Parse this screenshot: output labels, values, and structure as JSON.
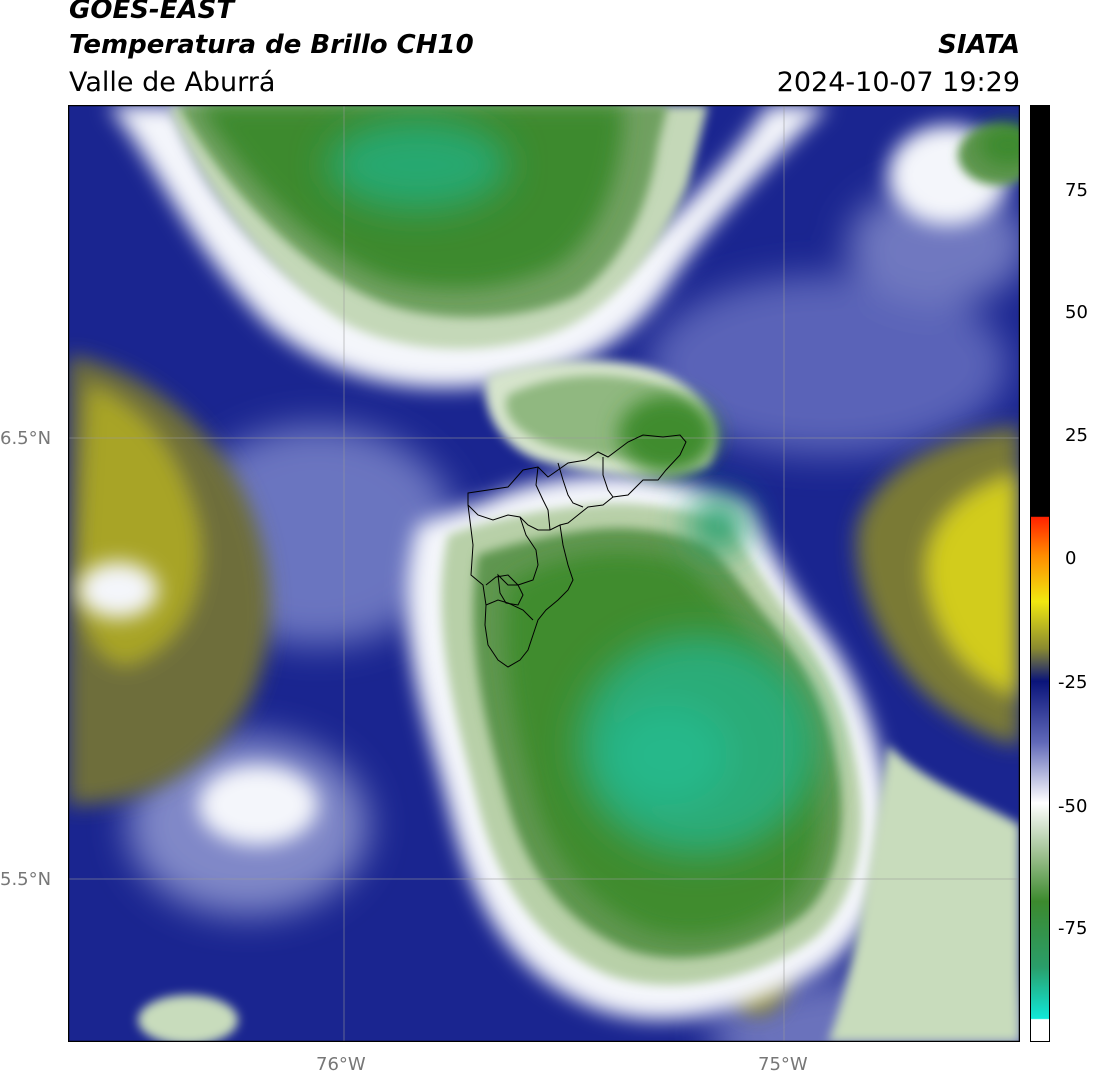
{
  "header": {
    "satellite": "GOES-EAST",
    "product": "Temperatura de Brillo CH10",
    "region": "Valle de Aburrá",
    "agency": "SIATA",
    "datetime": "2024-10-07 19:29"
  },
  "map": {
    "lat_labels": [
      "6.5°N",
      "5.5°N"
    ],
    "lon_labels": [
      "76°W",
      "75°W"
    ],
    "gridlines": true
  },
  "colorbar": {
    "ticks": [
      "75",
      "50",
      "25",
      "0",
      "-25",
      "-50",
      "-75"
    ],
    "colors": {
      "black": "#000000",
      "red": "#ff2200",
      "orange": "#ff9900",
      "yellow": "#e8e020",
      "olive": "#8a8a30",
      "navy": "#0a147a",
      "white": "#ffffff",
      "green": "#3c8a2e",
      "cyan": "#10e8d8"
    }
  }
}
